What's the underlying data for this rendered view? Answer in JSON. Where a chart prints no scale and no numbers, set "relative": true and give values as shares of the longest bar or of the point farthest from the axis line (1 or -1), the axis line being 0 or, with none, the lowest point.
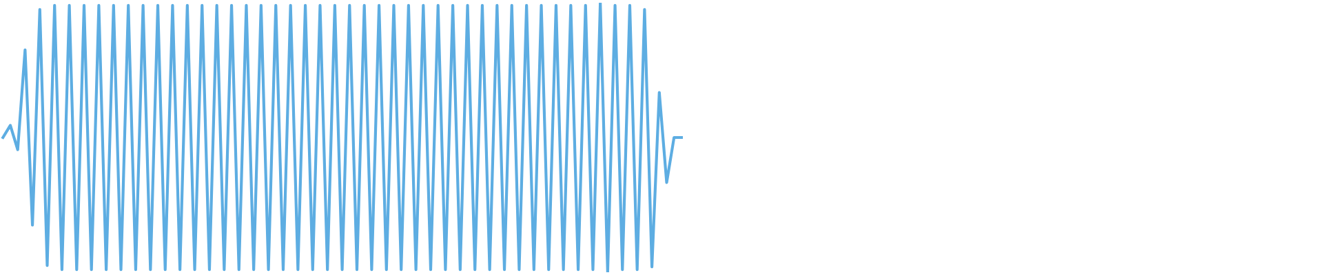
{
  "chart_data": {
    "type": "line",
    "relative": true,
    "line_style": "solid",
    "categories": [
      null,
      null,
      null,
      null,
      null,
      null,
      null,
      null,
      null,
      null,
      null,
      null,
      null,
      null,
      null,
      null,
      null,
      null,
      null,
      null,
      null,
      null,
      null,
      null,
      null,
      null,
      null,
      null,
      null,
      null,
      null,
      null,
      null,
      null,
      null,
      null,
      null,
      null,
      null,
      null,
      null,
      null,
      null,
      null,
      null,
      null,
      null,
      null,
      null,
      null,
      null,
      null,
      null,
      null,
      null,
      null,
      null,
      null,
      null,
      null,
      null,
      null,
      null,
      null,
      null,
      null,
      null,
      null,
      null,
      null,
      null,
      null,
      null,
      null,
      null,
      null,
      null,
      null,
      null,
      null,
      null,
      null,
      null,
      null,
      null,
      null,
      null,
      null,
      null,
      null,
      null,
      null,
      null,
      null,
      null,
      null,
      null,
      null,
      null,
      null,
      null,
      null,
      null,
      null,
      null,
      null,
      null,
      null,
      null,
      null,
      null,
      null,
      null,
      null,
      null,
      null,
      null,
      null,
      null,
      null,
      null,
      null,
      null,
      null,
      null,
      null,
      null,
      null,
      null,
      null,
      null,
      null,
      null,
      null,
      null,
      null,
      null,
      null,
      null,
      null,
      null,
      null,
      null,
      null,
      null,
      null,
      null,
      null,
      null,
      null,
      null,
      null,
      null,
      null,
      null,
      null,
      null,
      null,
      null,
      null,
      null,
      null,
      null,
      null,
      null,
      null,
      null,
      null,
      null,
      null,
      null,
      null,
      null,
      null,
      null,
      null,
      null,
      null,
      null,
      null
    ],
    "series": [
      {
        "color": "#5dade2",
        "values": [
          0.5,
          0.545,
          0.455,
          0.825,
          0.175,
          0.975,
          0.025,
          0.99,
          0.01,
          0.99,
          0.01,
          0.99,
          0.01,
          0.99,
          0.01,
          0.99,
          0.01,
          0.99,
          0.01,
          0.99,
          0.01,
          0.99,
          0.01,
          0.99,
          0.01,
          0.99,
          0.01,
          0.99,
          0.01,
          0.99,
          0.01,
          0.99,
          0.01,
          0.99,
          0.01,
          0.99,
          0.01,
          0.99,
          0.01,
          0.99,
          0.01,
          0.99,
          0.01,
          0.99,
          0.01,
          0.99,
          0.01,
          0.99,
          0.01,
          0.99,
          0.01,
          0.99,
          0.01,
          0.99,
          0.01,
          0.99,
          0.01,
          0.99,
          0.01,
          0.99,
          0.01,
          0.99,
          0.01,
          0.99,
          0.01,
          0.99,
          0.01,
          0.99,
          0.01,
          0.99,
          0.01,
          0.99,
          0.01,
          0.99,
          0.01,
          0.99,
          0.01,
          0.99,
          0.01,
          0.99,
          0.01,
          1.0,
          0.0,
          0.99,
          0.01,
          0.99,
          0.01,
          0.975,
          0.02,
          0.667,
          0.333,
          0.5,
          0.5,
          null,
          null,
          null,
          null,
          null,
          null,
          null,
          null,
          null,
          null,
          null,
          null,
          null,
          null,
          null,
          null,
          null,
          null,
          null,
          null,
          null,
          null,
          null,
          null,
          null,
          null,
          null,
          null,
          null,
          null,
          null,
          null,
          null,
          null,
          null,
          null,
          null,
          null,
          null,
          null,
          null,
          null,
          null,
          null,
          null,
          null,
          null,
          null,
          null,
          null,
          null,
          null,
          null,
          null,
          null,
          null,
          null,
          null,
          null,
          null,
          null,
          null,
          null,
          null,
          null,
          null,
          null,
          null,
          null,
          null,
          null,
          null,
          null,
          null,
          null,
          null,
          null,
          null,
          null,
          null,
          null,
          null,
          null,
          null,
          null,
          null,
          null
        ]
      }
    ]
  }
}
